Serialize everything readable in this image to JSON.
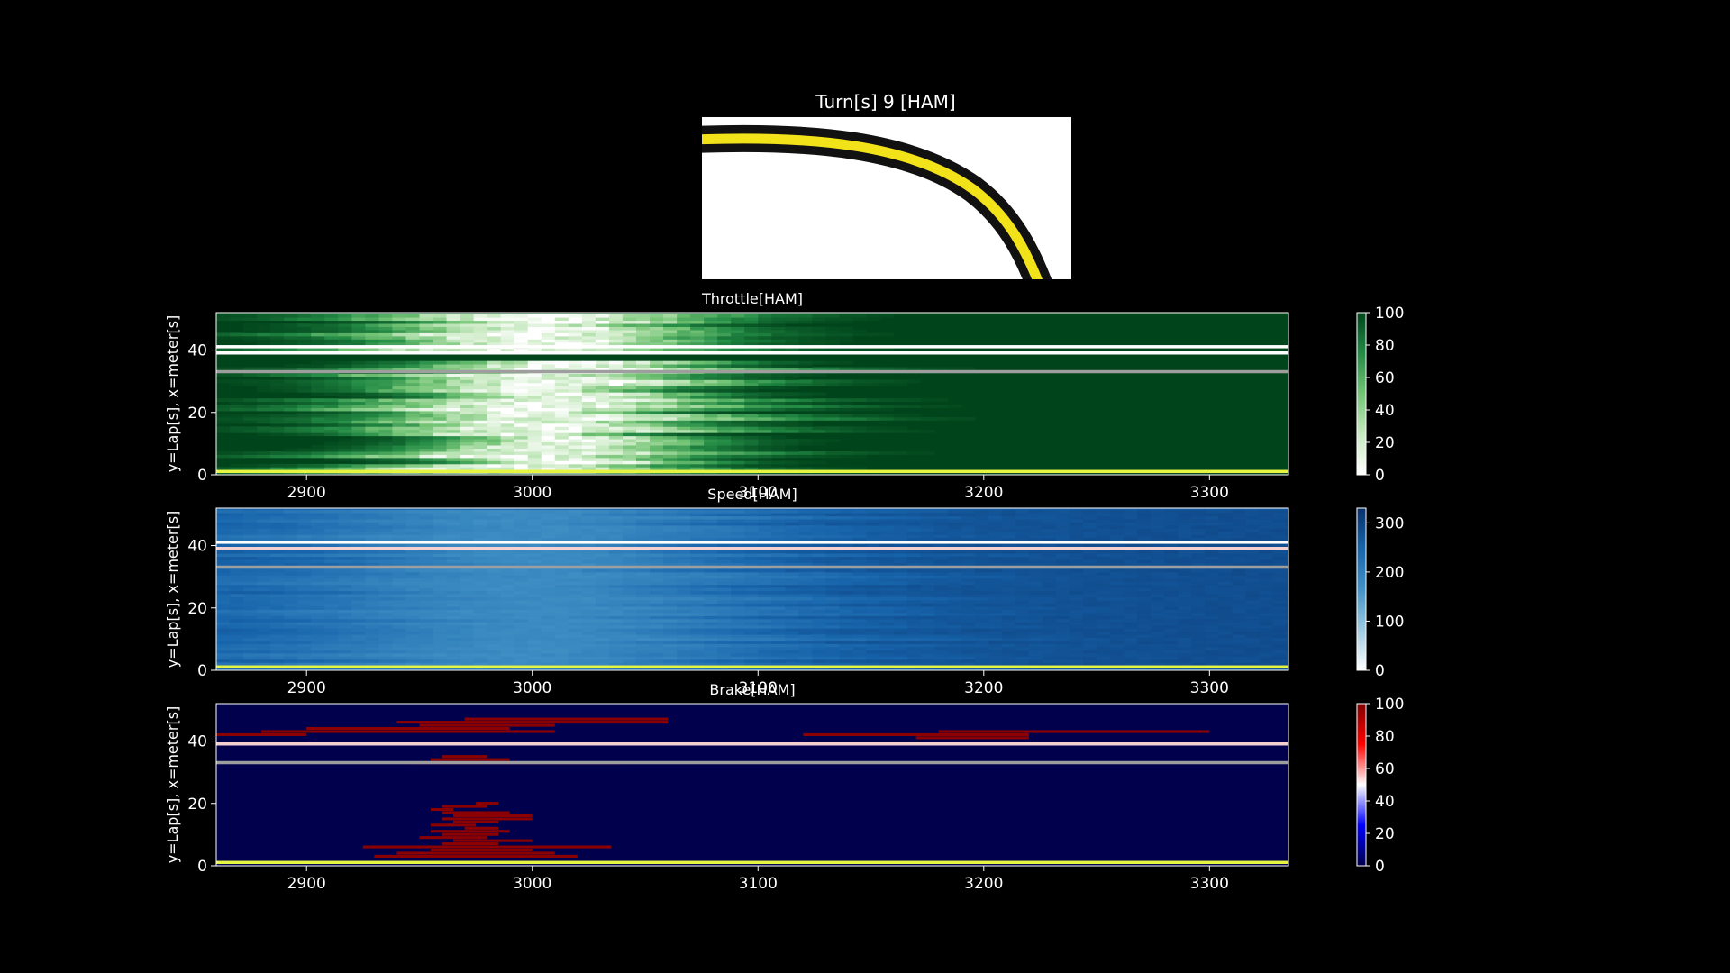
{
  "map": {
    "title": "Turn[s] 9 [HAM]"
  },
  "chart_data": [
    {
      "type": "heatmap",
      "name": "throttle",
      "title": "Throttle[HAM]",
      "ylabel": "y=Lap[s], x=meter[s]",
      "xlim": [
        2860,
        3335
      ],
      "ylim": [
        0,
        52
      ],
      "xticks": [
        2900,
        3000,
        3100,
        3200,
        3300
      ],
      "yticks": [
        0,
        20,
        40
      ],
      "colorbar": {
        "ticks": [
          0,
          20,
          40,
          60,
          80,
          100
        ],
        "range": [
          0,
          100
        ]
      },
      "colormap": [
        "#ffffff",
        "#c7e9c0",
        "#74c476",
        "#238b45",
        "#00441b"
      ],
      "base_value": 100,
      "dip_center_x": 3000,
      "dip_half_width": 90,
      "laps_highlight": [
        {
          "lap": 1,
          "color": "#e5f542"
        },
        {
          "lap": 33,
          "color": "#9e9e9e"
        },
        {
          "lap": 39,
          "color": "#ffffff"
        },
        {
          "lap": 41,
          "color": "#ffffff"
        }
      ]
    },
    {
      "type": "heatmap",
      "name": "speed",
      "title": "Speed[HAM]",
      "ylabel": "y=Lap[s], x=meter[s]",
      "xlim": [
        2860,
        3335
      ],
      "ylim": [
        0,
        52
      ],
      "xticks": [
        2900,
        3000,
        3100,
        3200,
        3300
      ],
      "yticks": [
        0,
        20,
        40
      ],
      "colorbar": {
        "ticks": [
          0,
          100,
          200,
          300
        ],
        "range": [
          0,
          330
        ]
      },
      "colormap": [
        "#ffffff",
        "#9ecae1",
        "#4292c6",
        "#1764ab",
        "#08306b"
      ],
      "base_value": 260,
      "dip_center_x": 3000,
      "dip_half_width": 120,
      "laps_highlight": [
        {
          "lap": 1,
          "color": "#e5f542"
        },
        {
          "lap": 33,
          "color": "#9e9e9e"
        },
        {
          "lap": 39,
          "color": "#f5d0d0"
        },
        {
          "lap": 41,
          "color": "#ffffff"
        }
      ]
    },
    {
      "type": "heatmap",
      "name": "brake",
      "title": "Brake[HAM]",
      "ylabel": "y=Lap[s], x=meter[s]",
      "xlim": [
        2860,
        3335
      ],
      "ylim": [
        0,
        52
      ],
      "xticks": [
        2900,
        3000,
        3100,
        3200,
        3300
      ],
      "yticks": [
        0,
        20,
        40
      ],
      "colorbar": {
        "ticks": [
          0,
          20,
          40,
          60,
          80,
          100
        ],
        "range": [
          0,
          100
        ]
      },
      "colormap": [
        "#00004c",
        "#0000ff",
        "#ffffff",
        "#ff0000",
        "#800000"
      ],
      "base_value": 0,
      "brake_segments": [
        [
          3,
          2930,
          3020
        ],
        [
          4,
          2940,
          3010
        ],
        [
          5,
          2955,
          3000
        ],
        [
          6,
          2925,
          3035
        ],
        [
          7,
          2960,
          2985
        ],
        [
          8,
          2965,
          3000
        ],
        [
          9,
          2950,
          2980
        ],
        [
          10,
          2960,
          2985
        ],
        [
          11,
          2955,
          2990
        ],
        [
          12,
          2970,
          2985
        ],
        [
          13,
          2955,
          2975
        ],
        [
          14,
          2965,
          2985
        ],
        [
          15,
          2960,
          3000
        ],
        [
          16,
          2965,
          3000
        ],
        [
          17,
          2960,
          2990
        ],
        [
          18,
          2955,
          2965
        ],
        [
          19,
          2960,
          2980
        ],
        [
          20,
          2975,
          2985
        ],
        [
          35,
          2960,
          2980
        ],
        [
          33,
          2945,
          3040
        ],
        [
          34,
          2955,
          2990
        ],
        [
          42,
          2860,
          2900
        ],
        [
          43,
          2880,
          3010
        ],
        [
          44,
          2900,
          2990
        ],
        [
          45,
          2950,
          3010
        ],
        [
          46,
          2940,
          3060
        ],
        [
          47,
          2970,
          3060
        ],
        [
          42,
          3120,
          3220
        ],
        [
          41,
          3170,
          3220
        ],
        [
          43,
          3180,
          3300
        ],
        [
          1,
          3055,
          3070
        ],
        [
          1,
          3190,
          3210
        ]
      ],
      "laps_highlight": [
        {
          "lap": 1,
          "color": "#e5f542"
        },
        {
          "lap": 33,
          "color": "#9e9e9e"
        },
        {
          "lap": 39,
          "color": "#f5d0d0"
        }
      ]
    }
  ]
}
